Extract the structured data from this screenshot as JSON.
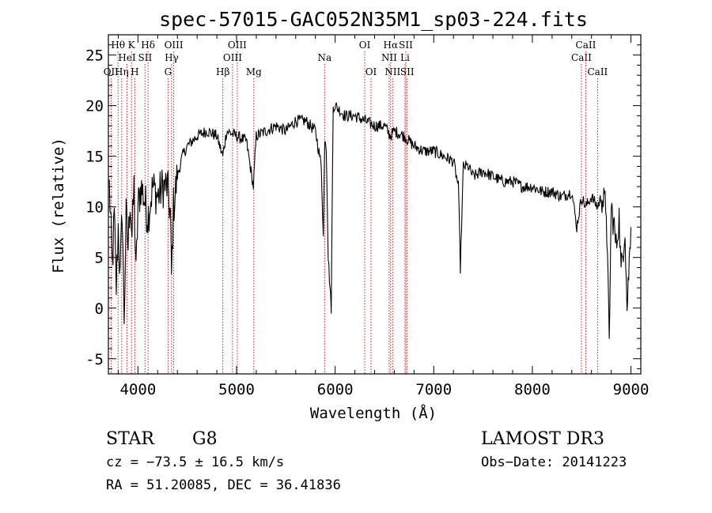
{
  "chart_data": {
    "type": "line",
    "title": "spec-57015-GAC052N35M1_sp03-224.fits",
    "xlabel": "Wavelength (Å)",
    "ylabel": "Flux (relative)",
    "xlim": [
      3700,
      9100
    ],
    "ylim": [
      -6.5,
      27
    ],
    "xticks": [
      4000,
      5000,
      6000,
      7000,
      8000,
      9000
    ],
    "yticks": [
      -5,
      0,
      5,
      10,
      15,
      20,
      25
    ],
    "line_color": "#000000",
    "marker_color": "#cc0000",
    "series": [
      {
        "name": "spectrum",
        "x": [
          3710,
          3740,
          3760,
          3780,
          3800,
          3820,
          3840,
          3860,
          3880,
          3900,
          3920,
          3940,
          3960,
          3980,
          4000,
          4030,
          4060,
          4100,
          4150,
          4200,
          4250,
          4300,
          4330,
          4340,
          4360,
          4400,
          4450,
          4500,
          4600,
          4700,
          4800,
          4860,
          4900,
          5000,
          5100,
          5170,
          5200,
          5300,
          5400,
          5500,
          5600,
          5700,
          5800,
          5860,
          5880,
          5895,
          5910,
          5930,
          5960,
          5980,
          6000,
          6100,
          6200,
          6300,
          6400,
          6500,
          6560,
          6600,
          6700,
          6800,
          6900,
          7000,
          7100,
          7200,
          7250,
          7270,
          7300,
          7350,
          7400,
          7500,
          7600,
          7700,
          7800,
          7900,
          8000,
          8100,
          8200,
          8300,
          8400,
          8450,
          8500,
          8540,
          8600,
          8660,
          8700,
          8750,
          8780,
          8800,
          8830,
          8850,
          8880,
          8900,
          8940,
          8960,
          9000
        ],
        "y": [
          12,
          4,
          9,
          2,
          8,
          3,
          10,
          -1,
          9,
          6,
          11,
          7,
          12,
          3,
          10,
          12,
          11,
          9,
          12,
          11,
          12,
          12,
          9,
          3,
          10,
          13,
          15,
          16,
          17,
          17.5,
          17,
          15,
          17.5,
          17,
          16.5,
          12,
          17,
          17.5,
          18,
          17.5,
          18.5,
          18.5,
          17.5,
          14,
          7,
          17,
          16,
          5,
          0,
          20,
          20,
          19,
          19,
          18.5,
          18,
          18,
          17,
          17.5,
          17,
          16,
          15.5,
          15.5,
          15,
          14.5,
          12,
          4,
          14,
          14,
          13,
          13.5,
          13,
          12.5,
          12.5,
          12,
          12,
          11.5,
          11.5,
          11,
          11.5,
          8,
          11,
          10,
          11,
          10,
          11,
          10,
          -3.5,
          10,
          8,
          6,
          9,
          3.5,
          8,
          0,
          8
        ]
      }
    ],
    "lines": [
      {
        "name": "OII",
        "wl": 3727,
        "row": 3
      },
      {
        "name": "Hθ",
        "wl": 3798,
        "row": 1
      },
      {
        "name": "Hη",
        "wl": 3835,
        "row": 3
      },
      {
        "name": "HeI",
        "wl": 3889,
        "row": 2
      },
      {
        "name": "K",
        "wl": 3934,
        "row": 1
      },
      {
        "name": "H",
        "wl": 3968,
        "row": 3
      },
      {
        "name": "SII",
        "wl": 4072,
        "row": 2
      },
      {
        "name": "Hδ",
        "wl": 4102,
        "row": 1
      },
      {
        "name": "G",
        "wl": 4305,
        "row": 3
      },
      {
        "name": "Hγ",
        "wl": 4341,
        "row": 2
      },
      {
        "name": "OIII",
        "wl": 4363,
        "row": 1
      },
      {
        "name": "Hβ",
        "wl": 4861,
        "row": 3
      },
      {
        "name": "OIII",
        "wl": 4959,
        "row": 2
      },
      {
        "name": "OIII",
        "wl": 5007,
        "row": 1
      },
      {
        "name": "Mg",
        "wl": 5175,
        "row": 3
      },
      {
        "name": "Na",
        "wl": 5893,
        "row": 2
      },
      {
        "name": "OI",
        "wl": 6300,
        "row": 1
      },
      {
        "name": "OI",
        "wl": 6364,
        "row": 3
      },
      {
        "name": "NII",
        "wl": 6548,
        "row": 2
      },
      {
        "name": "Hα",
        "wl": 6563,
        "row": 1
      },
      {
        "name": "NII",
        "wl": 6583,
        "row": 3
      },
      {
        "name": "SII",
        "wl": 6717,
        "row": 1
      },
      {
        "name": "Li",
        "wl": 6708,
        "row": 2
      },
      {
        "name": "SII",
        "wl": 6731,
        "row": 3
      },
      {
        "name": "CaII",
        "wl": 8498,
        "row": 2
      },
      {
        "name": "CaII",
        "wl": 8542,
        "row": 1
      },
      {
        "name": "CaII",
        "wl": 8662,
        "row": 3
      }
    ]
  },
  "info": {
    "class": "STAR",
    "subclass": "G8",
    "survey": "LAMOST DR3",
    "cz": "cz = −73.5 ± 16.5 km/s",
    "obs_date": "Obs−Date: 20141223",
    "coords": "RA =  51.20085, DEC =  36.41836"
  }
}
